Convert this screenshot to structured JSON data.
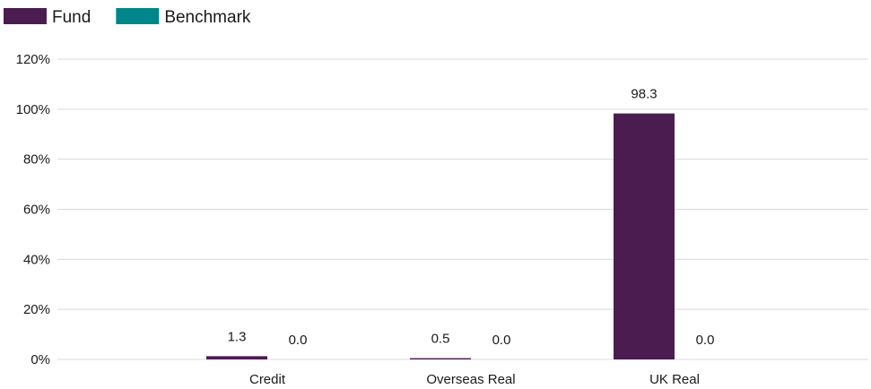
{
  "chart_data": {
    "type": "bar",
    "categories": [
      "Credit",
      "Overseas Real",
      "UK Real"
    ],
    "series": [
      {
        "name": "Fund",
        "values": [
          1.3,
          0.5,
          98.3
        ],
        "labels": [
          "1.3",
          "0.5",
          "98.3"
        ],
        "color": "#4b1c50"
      },
      {
        "name": "Benchmark",
        "values": [
          0.0,
          0.0,
          0.0
        ],
        "labels": [
          "0.0",
          "0.0",
          "0.0"
        ],
        "color": "#00868a"
      }
    ],
    "ylim": [
      0,
      120
    ],
    "yticks": [
      0,
      20,
      40,
      60,
      80,
      100,
      120
    ],
    "ytick_labels": [
      "0%",
      "20%",
      "40%",
      "60%",
      "80%",
      "100%",
      "120%"
    ],
    "grid": true,
    "legend_position": "top-left"
  }
}
